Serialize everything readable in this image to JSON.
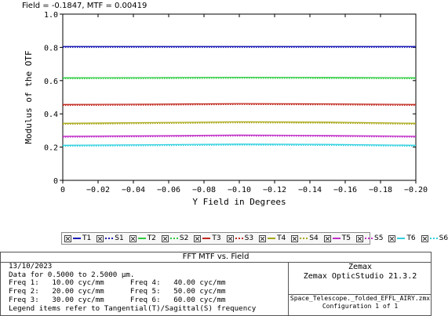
{
  "readout": "Field = -0.1847, MTF = 0.00419",
  "chart_data": {
    "type": "line",
    "xlabel": "Y Field in Degrees",
    "ylabel": "Modulus of the OTF",
    "xlim": [
      0,
      -0.2
    ],
    "ylim": [
      0,
      1.0
    ],
    "x_ticks": [
      "0",
      "−0.02",
      "−0.04",
      "−0.06",
      "−0.08",
      "−0.10",
      "−0.12",
      "−0.14",
      "−0.16",
      "−0.18",
      "−0.20"
    ],
    "x_tick_values": [
      0,
      -0.02,
      -0.04,
      -0.06,
      -0.08,
      -0.1,
      -0.12,
      -0.14,
      -0.16,
      -0.18,
      -0.2
    ],
    "y_ticks": [
      "0",
      "0.2",
      "0.4",
      "0.6",
      "0.8",
      "1.0"
    ],
    "y_tick_values": [
      0,
      0.2,
      0.4,
      0.6,
      0.8,
      1.0
    ],
    "grid": false,
    "x": [
      0,
      -0.05,
      -0.1,
      -0.15,
      -0.2
    ],
    "series": [
      {
        "name": "T1",
        "color": "#1c1cb4",
        "style": "solid",
        "values": [
          0.805,
          0.805,
          0.805,
          0.805,
          0.805
        ]
      },
      {
        "name": "S1",
        "color": "#1c1cb4",
        "style": "dotted",
        "values": [
          0.805,
          0.805,
          0.805,
          0.805,
          0.805
        ]
      },
      {
        "name": "T2",
        "color": "#2ecc40",
        "style": "solid",
        "values": [
          0.617,
          0.618,
          0.62,
          0.619,
          0.617
        ]
      },
      {
        "name": "S2",
        "color": "#2ecc40",
        "style": "dotted",
        "values": [
          0.617,
          0.618,
          0.62,
          0.619,
          0.617
        ]
      },
      {
        "name": "T3",
        "color": "#c0281e",
        "style": "solid",
        "values": [
          0.456,
          0.458,
          0.462,
          0.46,
          0.456
        ]
      },
      {
        "name": "S3",
        "color": "#c0281e",
        "style": "dotted",
        "values": [
          0.456,
          0.458,
          0.462,
          0.46,
          0.456
        ]
      },
      {
        "name": "T4",
        "color": "#a8a818",
        "style": "solid",
        "values": [
          0.343,
          0.347,
          0.352,
          0.35,
          0.343
        ]
      },
      {
        "name": "S4",
        "color": "#a8a818",
        "style": "dotted",
        "values": [
          0.343,
          0.347,
          0.352,
          0.35,
          0.343
        ]
      },
      {
        "name": "T5",
        "color": "#c030c8",
        "style": "solid",
        "values": [
          0.265,
          0.268,
          0.272,
          0.27,
          0.265
        ]
      },
      {
        "name": "S5",
        "color": "#c030c8",
        "style": "dotted",
        "values": [
          0.265,
          0.268,
          0.272,
          0.27,
          0.265
        ]
      },
      {
        "name": "T6",
        "color": "#30d0e0",
        "style": "solid",
        "values": [
          0.211,
          0.214,
          0.218,
          0.216,
          0.211
        ]
      },
      {
        "name": "S6",
        "color": "#30d0e0",
        "style": "dotted",
        "values": [
          0.211,
          0.214,
          0.218,
          0.216,
          0.211
        ]
      }
    ]
  },
  "panel": {
    "title": "FFT MTF vs. Field",
    "date": "13/10/2023",
    "data_range": "Data for 0.5000 to 2.5000 µm.",
    "freq_rows": [
      "Freq 1:   10.00 cyc/mm      Freq 4:   40.00 cyc/mm",
      "Freq 2:   20.00 cyc/mm      Freq 5:   50.00 cyc/mm",
      "Freq 3:   30.00 cyc/mm      Freq 6:   60.00 cyc/mm"
    ],
    "legend_note": "Legend items refer to Tangential(T)/Sagittal(S) frequency",
    "company": "Zemax",
    "product": "Zemax OpticStudio 21.3.2",
    "filename": "Space_Telescope._folded_EFFL_AIRY.zmx",
    "configuration": "Configuration 1 of 1"
  }
}
